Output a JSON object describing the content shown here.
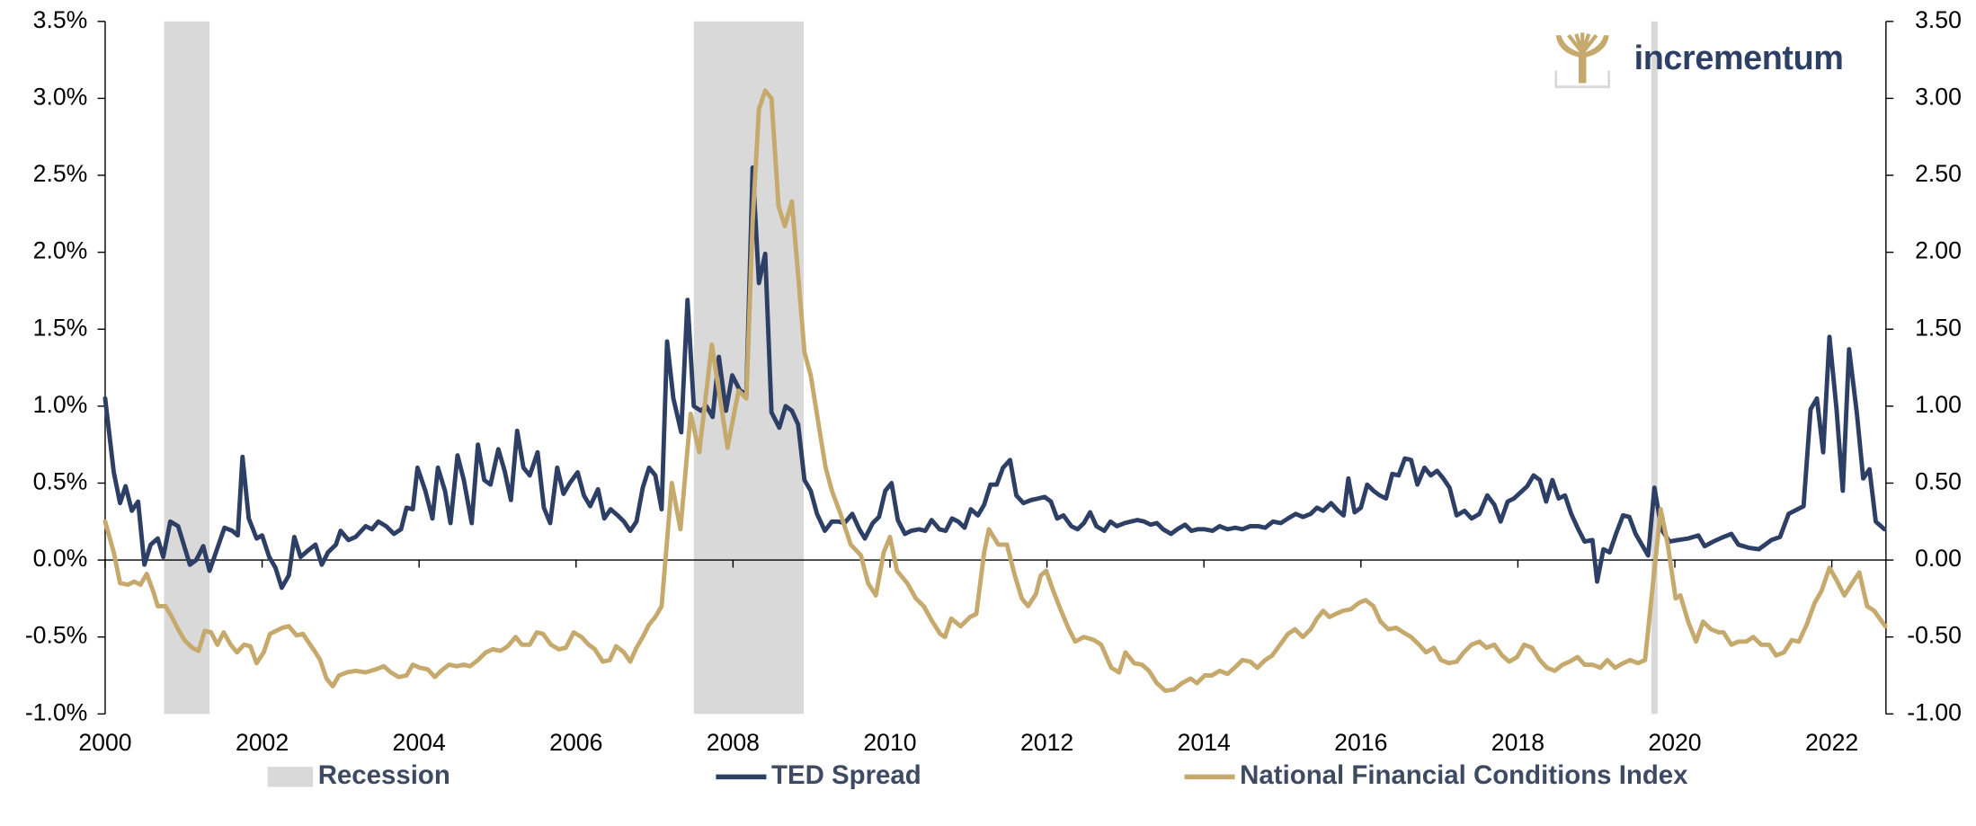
{
  "logo": "incrementum",
  "chart_data": {
    "type": "line",
    "legend": "bottom",
    "grid": false,
    "xlim": [
      2000,
      2022.69
    ],
    "xticks": [
      2000,
      2002,
      2004,
      2006,
      2008,
      2010,
      2012,
      2014,
      2016,
      2018,
      2020,
      2022
    ],
    "ylim": [
      -1,
      3.5
    ],
    "yticks": [
      {
        "value": -1,
        "label": "-1.0%"
      },
      {
        "value": -0.5,
        "label": "-0.5%"
      },
      {
        "value": 0,
        "label": "0.0%"
      },
      {
        "value": 0.5,
        "label": "0.5%"
      },
      {
        "value": 1,
        "label": "1.0%"
      },
      {
        "value": 1.5,
        "label": "1.5%"
      },
      {
        "value": 2,
        "label": "2.0%"
      },
      {
        "value": 2.5,
        "label": "2.5%"
      },
      {
        "value": 3,
        "label": "3.0%"
      },
      {
        "value": 3.5,
        "label": "3.5%"
      }
    ],
    "y2lim": [
      -1,
      3.5
    ],
    "y2ticks": [
      {
        "value": -1,
        "label": "-1.00"
      },
      {
        "value": -0.5,
        "label": "-0.50"
      },
      {
        "value": 0,
        "label": "0.00"
      },
      {
        "value": 0.5,
        "label": "0.50"
      },
      {
        "value": 1,
        "label": "1.00"
      },
      {
        "value": 1.5,
        "label": "1.50"
      },
      {
        "value": 2,
        "label": "2.00"
      },
      {
        "value": 2.5,
        "label": "2.50"
      },
      {
        "value": 3,
        "label": "3.00"
      },
      {
        "value": 3.5,
        "label": "3.50"
      }
    ],
    "recessions": {
      "name": "Recession",
      "color": "#d9d9d9",
      "ranges": [
        [
          2000.75,
          2001.33
        ],
        [
          2007.5,
          2008.9
        ],
        [
          2019.7,
          2019.78
        ]
      ]
    },
    "series": [
      {
        "name": "TED Spread",
        "color": "#2e3f66",
        "axis": "y",
        "x": [
          2000.0,
          2000.11,
          2000.19,
          2000.26,
          2000.34,
          2000.42,
          2000.5,
          2000.58,
          2000.67,
          2000.74,
          2000.83,
          2000.93,
          2001.08,
          2001.16,
          2001.25,
          2001.33,
          2001.52,
          2001.62,
          2001.69,
          2001.75,
          2001.83,
          2001.93,
          2002.0,
          2002.09,
          2002.17,
          2002.25,
          2002.34,
          2002.41,
          2002.49,
          2002.58,
          2002.68,
          2002.76,
          2002.84,
          2002.94,
          2003.0,
          2003.1,
          2003.19,
          2003.32,
          2003.4,
          2003.48,
          2003.58,
          2003.68,
          2003.77,
          2003.84,
          2003.92,
          2003.98,
          2004.08,
          2004.17,
          2004.24,
          2004.33,
          2004.4,
          2004.49,
          2004.57,
          2004.67,
          2004.75,
          2004.83,
          2004.91,
          2005.01,
          2005.09,
          2005.17,
          2005.25,
          2005.33,
          2005.41,
          2005.51,
          2005.59,
          2005.67,
          2005.76,
          2005.84,
          2005.92,
          2006.02,
          2006.1,
          2006.18,
          2006.28,
          2006.36,
          2006.44,
          2006.53,
          2006.61,
          2006.69,
          2006.77,
          2006.85,
          2006.93,
          2007.01,
          2007.09,
          2007.16,
          2007.24,
          2007.34,
          2007.42,
          2007.5,
          2007.59,
          2007.66,
          2007.74,
          2007.82,
          2007.91,
          2007.99,
          2008.09,
          2008.17,
          2008.25,
          2008.33,
          2008.41,
          2008.49,
          2008.59,
          2008.67,
          2008.75,
          2008.83,
          2008.91,
          2008.99,
          2009.07,
          2009.17,
          2009.26,
          2009.34,
          2009.42,
          2009.52,
          2009.61,
          2009.68,
          2009.78,
          2009.86,
          2009.94,
          2010.02,
          2010.1,
          2010.19,
          2010.27,
          2010.37,
          2010.45,
          2010.53,
          2010.63,
          2010.71,
          2010.79,
          2010.87,
          2010.95,
          2011.03,
          2011.12,
          2011.2,
          2011.28,
          2011.36,
          2011.44,
          2011.53,
          2011.61,
          2011.7,
          2011.8,
          2011.89,
          2011.97,
          2012.05,
          2012.13,
          2012.21,
          2012.31,
          2012.39,
          2012.47,
          2012.55,
          2012.63,
          2012.73,
          2012.81,
          2012.89,
          2012.99,
          2013.07,
          2013.15,
          2013.24,
          2013.32,
          2013.4,
          2013.48,
          2013.58,
          2013.66,
          2013.76,
          2013.84,
          2013.92,
          2014.01,
          2014.11,
          2014.2,
          2014.3,
          2014.4,
          2014.49,
          2014.59,
          2014.69,
          2014.78,
          2014.88,
          2014.98,
          2015.07,
          2015.17,
          2015.26,
          2015.36,
          2015.44,
          2015.52,
          2015.62,
          2015.71,
          2015.78,
          2015.84,
          2015.92,
          2016.0,
          2016.08,
          2016.16,
          2016.24,
          2016.32,
          2016.4,
          2016.48,
          2016.56,
          2016.64,
          2016.72,
          2016.81,
          2016.89,
          2016.97,
          2017.05,
          2017.13,
          2017.22,
          2017.32,
          2017.41,
          2017.51,
          2017.61,
          2017.7,
          2017.78,
          2017.87,
          2017.95,
          2018.12,
          2018.2,
          2018.28,
          2018.36,
          2018.44,
          2018.52,
          2018.6,
          2018.68,
          2018.77,
          2018.85,
          2018.95,
          2019.01,
          2019.09,
          2019.17,
          2019.25,
          2019.34,
          2019.42,
          2019.5,
          2019.58,
          2019.66,
          2019.74,
          2019.83,
          2019.93,
          2020.04,
          2020.17,
          2020.3,
          2020.38,
          2020.49,
          2020.62,
          2020.72,
          2020.81,
          2020.94,
          2021.07,
          2021.23,
          2021.34,
          2021.45,
          2021.64,
          2021.73,
          2021.81,
          2021.89,
          2021.97,
          2022.06,
          2022.14,
          2022.22,
          2022.32,
          2022.4,
          2022.48,
          2022.56,
          2022.67
        ],
        "values": [
          1.05,
          0.57,
          0.37,
          0.48,
          0.32,
          0.38,
          -0.03,
          0.1,
          0.14,
          0.02,
          0.25,
          0.22,
          -0.03,
          0.0,
          0.09,
          -0.07,
          0.21,
          0.19,
          0.16,
          0.67,
          0.27,
          0.14,
          0.16,
          0.02,
          -0.05,
          -0.18,
          -0.1,
          0.15,
          0.02,
          0.06,
          0.1,
          -0.03,
          0.05,
          0.1,
          0.19,
          0.13,
          0.15,
          0.22,
          0.2,
          0.25,
          0.22,
          0.17,
          0.2,
          0.34,
          0.33,
          0.6,
          0.45,
          0.27,
          0.6,
          0.45,
          0.24,
          0.68,
          0.52,
          0.24,
          0.75,
          0.52,
          0.49,
          0.72,
          0.58,
          0.39,
          0.84,
          0.6,
          0.55,
          0.7,
          0.34,
          0.24,
          0.6,
          0.43,
          0.5,
          0.57,
          0.42,
          0.35,
          0.46,
          0.27,
          0.33,
          0.29,
          0.25,
          0.19,
          0.25,
          0.47,
          0.6,
          0.55,
          0.33,
          1.42,
          1.05,
          0.83,
          1.69,
          1.0,
          0.97,
          1.0,
          0.93,
          1.32,
          0.97,
          1.2,
          1.1,
          1.08,
          2.55,
          1.8,
          1.99,
          0.96,
          0.86,
          1.0,
          0.97,
          0.88,
          0.52,
          0.45,
          0.3,
          0.19,
          0.25,
          0.25,
          0.24,
          0.3,
          0.2,
          0.14,
          0.24,
          0.28,
          0.45,
          0.5,
          0.26,
          0.17,
          0.19,
          0.2,
          0.19,
          0.26,
          0.2,
          0.19,
          0.27,
          0.25,
          0.21,
          0.33,
          0.29,
          0.36,
          0.49,
          0.49,
          0.6,
          0.65,
          0.42,
          0.37,
          0.39,
          0.4,
          0.41,
          0.38,
          0.27,
          0.29,
          0.22,
          0.2,
          0.24,
          0.31,
          0.22,
          0.19,
          0.25,
          0.22,
          0.24,
          0.25,
          0.26,
          0.25,
          0.23,
          0.24,
          0.2,
          0.17,
          0.2,
          0.23,
          0.19,
          0.2,
          0.2,
          0.19,
          0.22,
          0.2,
          0.21,
          0.2,
          0.22,
          0.22,
          0.21,
          0.25,
          0.24,
          0.27,
          0.3,
          0.28,
          0.3,
          0.34,
          0.32,
          0.37,
          0.32,
          0.29,
          0.53,
          0.31,
          0.34,
          0.49,
          0.45,
          0.42,
          0.4,
          0.56,
          0.55,
          0.66,
          0.65,
          0.49,
          0.6,
          0.55,
          0.58,
          0.53,
          0.47,
          0.29,
          0.32,
          0.27,
          0.3,
          0.42,
          0.36,
          0.25,
          0.38,
          0.4,
          0.48,
          0.55,
          0.52,
          0.38,
          0.52,
          0.4,
          0.42,
          0.3,
          0.2,
          0.12,
          0.13,
          -0.14,
          0.07,
          0.05,
          0.17,
          0.29,
          0.28,
          0.17,
          0.1,
          0.03,
          0.47,
          0.2,
          0.12,
          0.13,
          0.14,
          0.16,
          0.09,
          0.12,
          0.15,
          0.17,
          0.1,
          0.08,
          0.07,
          0.13,
          0.15,
          0.3,
          0.35,
          0.98,
          1.05,
          0.7,
          1.45,
          0.98,
          0.45,
          1.37,
          0.95,
          0.53,
          0.59,
          0.25,
          0.2
        ]
      },
      {
        "name": "National Financial Conditions Index",
        "color": "#c6a96c",
        "axis": "y2",
        "x": [
          2000.0,
          2000.11,
          2000.19,
          2000.29,
          2000.37,
          2000.45,
          2000.53,
          2000.61,
          2000.67,
          2000.77,
          2000.85,
          2000.93,
          2001.01,
          2001.11,
          2001.19,
          2001.27,
          2001.35,
          2001.43,
          2001.51,
          2001.6,
          2001.68,
          2001.77,
          2001.85,
          2001.93,
          2002.02,
          2002.1,
          2002.18,
          2002.26,
          2002.34,
          2002.44,
          2002.52,
          2002.6,
          2002.68,
          2002.74,
          2002.82,
          2002.9,
          2002.98,
          2003.08,
          2003.19,
          2003.32,
          2003.45,
          2003.55,
          2003.64,
          2003.74,
          2003.84,
          2003.92,
          2004.01,
          2004.11,
          2004.2,
          2004.28,
          2004.38,
          2004.48,
          2004.57,
          2004.65,
          2004.75,
          2004.85,
          2004.94,
          2005.04,
          2005.13,
          2005.23,
          2005.31,
          2005.41,
          2005.5,
          2005.58,
          2005.68,
          2005.78,
          2005.87,
          2005.97,
          2006.07,
          2006.16,
          2006.24,
          2006.34,
          2006.43,
          2006.51,
          2006.61,
          2006.69,
          2006.77,
          2006.85,
          2006.93,
          2007.01,
          2007.09,
          2007.22,
          2007.33,
          2007.46,
          2007.57,
          2007.73,
          2007.85,
          2007.93,
          2008.07,
          2008.17,
          2008.25,
          2008.33,
          2008.41,
          2008.49,
          2008.58,
          2008.66,
          2008.75,
          2008.83,
          2008.91,
          2008.99,
          2009.1,
          2009.18,
          2009.26,
          2009.37,
          2009.5,
          2009.63,
          2009.72,
          2009.82,
          2009.92,
          2010.0,
          2010.09,
          2010.22,
          2010.33,
          2010.43,
          2010.54,
          2010.64,
          2010.7,
          2010.78,
          2010.9,
          2011.02,
          2011.1,
          2011.2,
          2011.26,
          2011.38,
          2011.49,
          2011.59,
          2011.68,
          2011.76,
          2011.86,
          2011.92,
          2011.99,
          2012.08,
          2012.18,
          2012.28,
          2012.36,
          2012.47,
          2012.6,
          2012.69,
          2012.82,
          2012.92,
          2013.0,
          2013.11,
          2013.21,
          2013.3,
          2013.4,
          2013.51,
          2013.62,
          2013.72,
          2013.83,
          2013.91,
          2014.01,
          2014.1,
          2014.2,
          2014.3,
          2014.39,
          2014.49,
          2014.59,
          2014.68,
          2014.78,
          2014.87,
          2014.97,
          2015.07,
          2015.16,
          2015.26,
          2015.36,
          2015.44,
          2015.52,
          2015.6,
          2015.68,
          2015.77,
          2015.87,
          2015.97,
          2016.06,
          2016.16,
          2016.25,
          2016.35,
          2016.45,
          2016.54,
          2016.64,
          2016.74,
          2016.83,
          2016.93,
          2017.02,
          2017.12,
          2017.22,
          2017.31,
          2017.41,
          2017.51,
          2017.6,
          2017.7,
          2017.8,
          2017.89,
          2017.99,
          2018.08,
          2018.18,
          2018.28,
          2018.37,
          2018.47,
          2018.57,
          2018.66,
          2018.76,
          2018.85,
          2018.95,
          2019.05,
          2019.14,
          2019.24,
          2019.34,
          2019.43,
          2019.53,
          2019.62,
          2019.82,
          2019.91,
          2020.01,
          2020.07,
          2020.17,
          2020.27,
          2020.36,
          2020.46,
          2020.56,
          2020.62,
          2020.72,
          2020.81,
          2020.91,
          2021.0,
          2021.1,
          2021.2,
          2021.29,
          2021.39,
          2021.49,
          2021.58,
          2021.68,
          2021.78,
          2021.87,
          2021.97,
          2022.06,
          2022.16,
          2022.26,
          2022.35,
          2022.45,
          2022.54,
          2022.68
        ],
        "values": [
          0.25,
          0.05,
          -0.15,
          -0.16,
          -0.14,
          -0.16,
          -0.09,
          -0.2,
          -0.3,
          -0.3,
          -0.37,
          -0.45,
          -0.52,
          -0.57,
          -0.59,
          -0.46,
          -0.47,
          -0.55,
          -0.47,
          -0.55,
          -0.6,
          -0.55,
          -0.56,
          -0.67,
          -0.6,
          -0.48,
          -0.46,
          -0.44,
          -0.43,
          -0.49,
          -0.48,
          -0.54,
          -0.6,
          -0.65,
          -0.77,
          -0.82,
          -0.75,
          -0.73,
          -0.72,
          -0.73,
          -0.71,
          -0.69,
          -0.73,
          -0.76,
          -0.75,
          -0.68,
          -0.7,
          -0.71,
          -0.76,
          -0.72,
          -0.68,
          -0.69,
          -0.68,
          -0.69,
          -0.65,
          -0.6,
          -0.58,
          -0.59,
          -0.56,
          -0.5,
          -0.55,
          -0.55,
          -0.47,
          -0.48,
          -0.55,
          -0.58,
          -0.57,
          -0.47,
          -0.5,
          -0.55,
          -0.58,
          -0.66,
          -0.65,
          -0.56,
          -0.6,
          -0.66,
          -0.57,
          -0.5,
          -0.42,
          -0.37,
          -0.3,
          0.5,
          0.2,
          0.95,
          0.7,
          1.4,
          1.0,
          0.73,
          1.1,
          1.05,
          2.2,
          2.93,
          3.05,
          3.0,
          2.3,
          2.17,
          2.33,
          1.85,
          1.35,
          1.2,
          0.85,
          0.6,
          0.45,
          0.3,
          0.1,
          0.03,
          -0.15,
          -0.23,
          0.05,
          0.15,
          -0.07,
          -0.15,
          -0.25,
          -0.3,
          -0.4,
          -0.48,
          -0.5,
          -0.38,
          -0.43,
          -0.37,
          -0.35,
          0.05,
          0.2,
          0.1,
          0.1,
          -0.1,
          -0.25,
          -0.3,
          -0.22,
          -0.1,
          -0.07,
          -0.2,
          -0.33,
          -0.45,
          -0.53,
          -0.5,
          -0.52,
          -0.55,
          -0.7,
          -0.73,
          -0.6,
          -0.67,
          -0.68,
          -0.72,
          -0.8,
          -0.85,
          -0.84,
          -0.8,
          -0.77,
          -0.8,
          -0.75,
          -0.75,
          -0.72,
          -0.74,
          -0.7,
          -0.65,
          -0.66,
          -0.7,
          -0.65,
          -0.62,
          -0.55,
          -0.48,
          -0.45,
          -0.5,
          -0.45,
          -0.38,
          -0.33,
          -0.37,
          -0.35,
          -0.33,
          -0.32,
          -0.28,
          -0.26,
          -0.3,
          -0.4,
          -0.45,
          -0.44,
          -0.47,
          -0.5,
          -0.55,
          -0.6,
          -0.57,
          -0.65,
          -0.67,
          -0.66,
          -0.6,
          -0.55,
          -0.53,
          -0.57,
          -0.55,
          -0.62,
          -0.66,
          -0.63,
          -0.55,
          -0.57,
          -0.65,
          -0.7,
          -0.72,
          -0.68,
          -0.66,
          -0.63,
          -0.68,
          -0.68,
          -0.7,
          -0.65,
          -0.7,
          -0.67,
          -0.65,
          -0.67,
          -0.65,
          0.33,
          0.1,
          -0.25,
          -0.23,
          -0.4,
          -0.53,
          -0.4,
          -0.45,
          -0.47,
          -0.47,
          -0.55,
          -0.53,
          -0.53,
          -0.5,
          -0.55,
          -0.55,
          -0.62,
          -0.6,
          -0.52,
          -0.53,
          -0.42,
          -0.28,
          -0.2,
          -0.05,
          -0.13,
          -0.23,
          -0.15,
          -0.08,
          -0.3,
          -0.33,
          -0.43
        ]
      }
    ]
  }
}
